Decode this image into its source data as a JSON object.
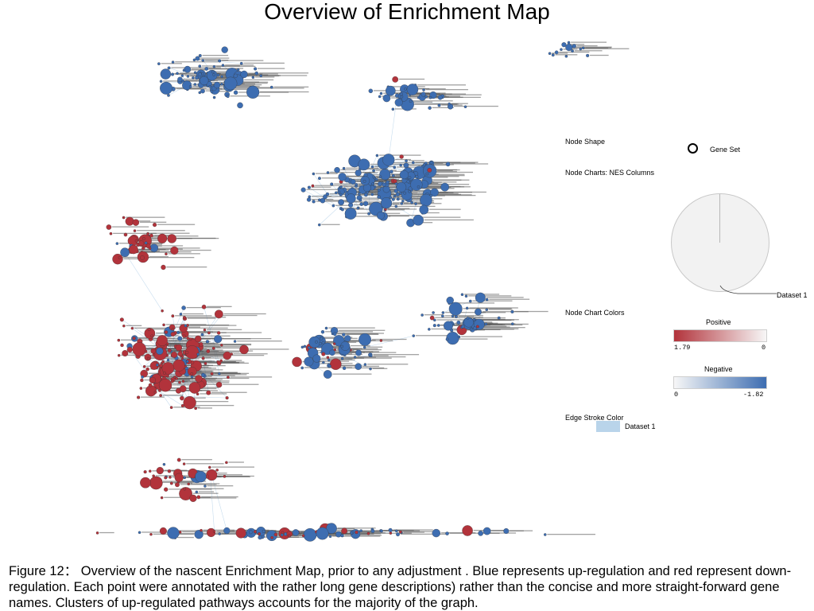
{
  "title": "Overview of Enrichment Map",
  "legend": {
    "node_shape_label": "Node Shape",
    "gene_set_label": "Gene Set",
    "node_charts_label": "Node Charts: NES Columns",
    "dataset_pie_label": "Dataset 1",
    "node_chart_colors_label": "Node Chart Colors",
    "positive": {
      "label": "Positive",
      "min_label": "1.79",
      "max_label": "0",
      "color_from": "#b2333b",
      "color_to": "#f7f7f7"
    },
    "negative": {
      "label": "Negative",
      "min_label": "0",
      "max_label": "-1.82",
      "color_from": "#f7f7f7",
      "color_to": "#3d6db1"
    },
    "edge_stroke_label": "Edge Stroke Color",
    "edge_dataset_label": "Dataset 1",
    "edge_color": "#b9d4ea"
  },
  "colors": {
    "up": "#3d6db1",
    "down": "#b2333b",
    "edge": "#b9d4ea"
  },
  "caption": "Figure 12：   Overview of the nascent Enrichment Map, prior to any adjustment . Blue represents up-regulation and red represent down-regulation. Each point were annotated with the rather long gene descriptions) rather than the concise and more straight-forward gene names. Clusters of up-regulated pathways accounts for the majority of the graph."
}
